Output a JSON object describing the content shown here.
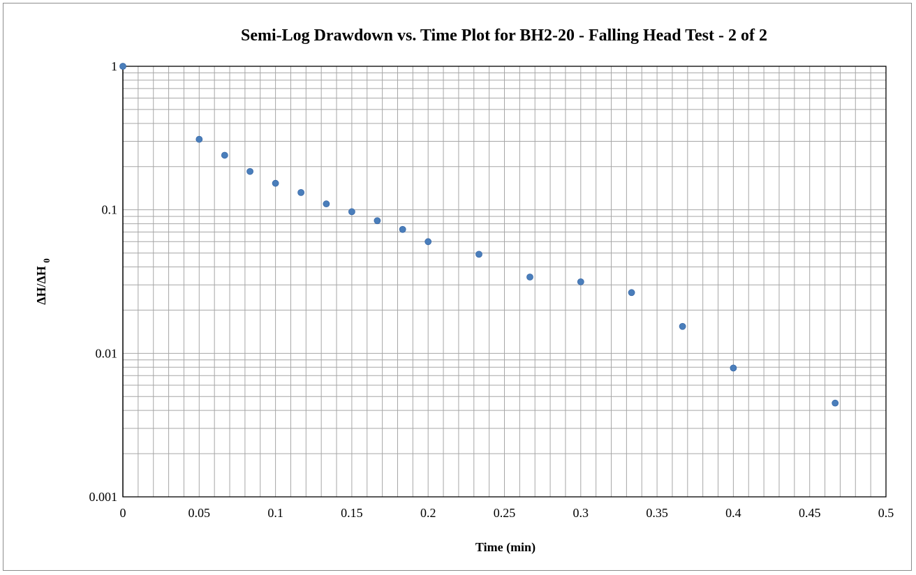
{
  "chart_data": {
    "type": "scatter",
    "title": "Semi-Log Drawdown vs. Time Plot for BH2-20 - Falling Head Test - 2 of 2",
    "xlabel": "Time (min)",
    "ylabel": {
      "base": "ΔH/ΔH",
      "subscript": "0"
    },
    "x_scale": "linear",
    "y_scale": "log",
    "xlim": [
      0,
      0.5
    ],
    "ylim": [
      0.001,
      1
    ],
    "x_ticks": [
      "0",
      "0.05",
      "0.1",
      "0.15",
      "0.2",
      "0.25",
      "0.3",
      "0.35",
      "0.4",
      "0.45",
      "0.5"
    ],
    "y_ticks": [
      "1",
      "0.1",
      "0.01",
      "0.001"
    ],
    "grid": true,
    "legend": "none",
    "marker_color": "#4a7ebb",
    "series": [
      {
        "x": [
          0,
          0.05,
          0.0667,
          0.0833,
          0.1,
          0.1167,
          0.1333,
          0.15,
          0.1667,
          0.1833,
          0.2,
          0.2333,
          0.2667,
          0.3,
          0.3333,
          0.3667,
          0.4,
          0.4667
        ],
        "y": [
          1.0,
          0.31,
          0.24,
          0.185,
          0.153,
          0.132,
          0.11,
          0.097,
          0.084,
          0.073,
          0.06,
          0.049,
          0.034,
          0.0315,
          0.0265,
          0.0154,
          0.0079,
          0.0045
        ]
      }
    ]
  }
}
